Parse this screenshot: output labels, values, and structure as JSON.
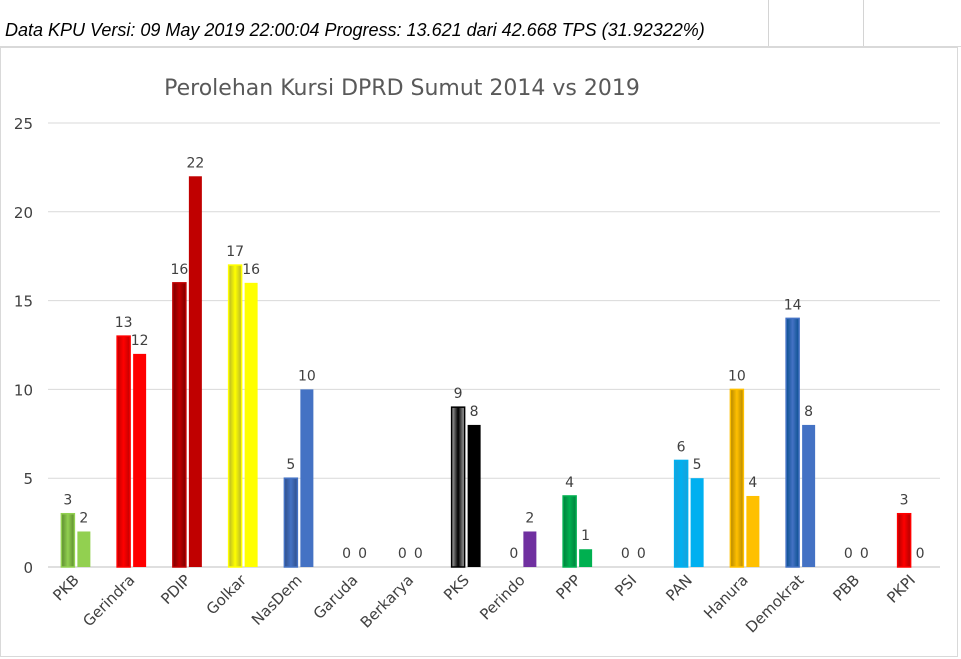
{
  "header": {
    "status_text": "Data KPU Versi: 09 May 2019 22:00:04 Progress: 13.621 dari 42.668 TPS (31.92322%)"
  },
  "chart_data": {
    "type": "bar",
    "title": "Perolehan Kursi DPRD Sumut 2014 vs 2019",
    "xlabel": "",
    "ylabel": "",
    "ylim": [
      0,
      25
    ],
    "yticks": [
      0,
      5,
      10,
      15,
      20,
      25
    ],
    "grid": true,
    "legend": "none",
    "categories": [
      "PKB",
      "Gerindra",
      "PDIP",
      "Golkar",
      "NasDem",
      "Garuda",
      "Berkarya",
      "PKS",
      "Perindo",
      "PPP",
      "PSI",
      "PAN",
      "Hanura",
      "Demokrat",
      "PBB",
      "PKPI"
    ],
    "series": [
      {
        "values": [
          3,
          13,
          16,
          17,
          5,
          0,
          0,
          9,
          0,
          4,
          0,
          6,
          10,
          14,
          0,
          3
        ]
      },
      {
        "values": [
          2,
          12,
          22,
          16,
          10,
          0,
          0,
          8,
          2,
          1,
          0,
          5,
          4,
          8,
          0,
          0
        ]
      }
    ],
    "colors_2014": [
      "#5b8a2e",
      "#c00000",
      "#7a0000",
      "#b5b52a",
      "#2f4f8a",
      "#808080",
      "#808080",
      "#b0b0b0",
      "#7030a0",
      "#00803c",
      "#c00000",
      "#1aa0d8",
      "#b38600",
      "#0a4f8f",
      "#2e7d32",
      "#b00000"
    ],
    "colors_2019": [
      "#92d050",
      "#ff0000",
      "#c00000",
      "#ffff00",
      "#4472c4",
      "#808080",
      "#808080",
      "#000000",
      "#7030a0",
      "#00b050",
      "#c00000",
      "#00b0f0",
      "#ffc000",
      "#4472c4",
      "#2e7d32",
      "#ff0000"
    ]
  }
}
